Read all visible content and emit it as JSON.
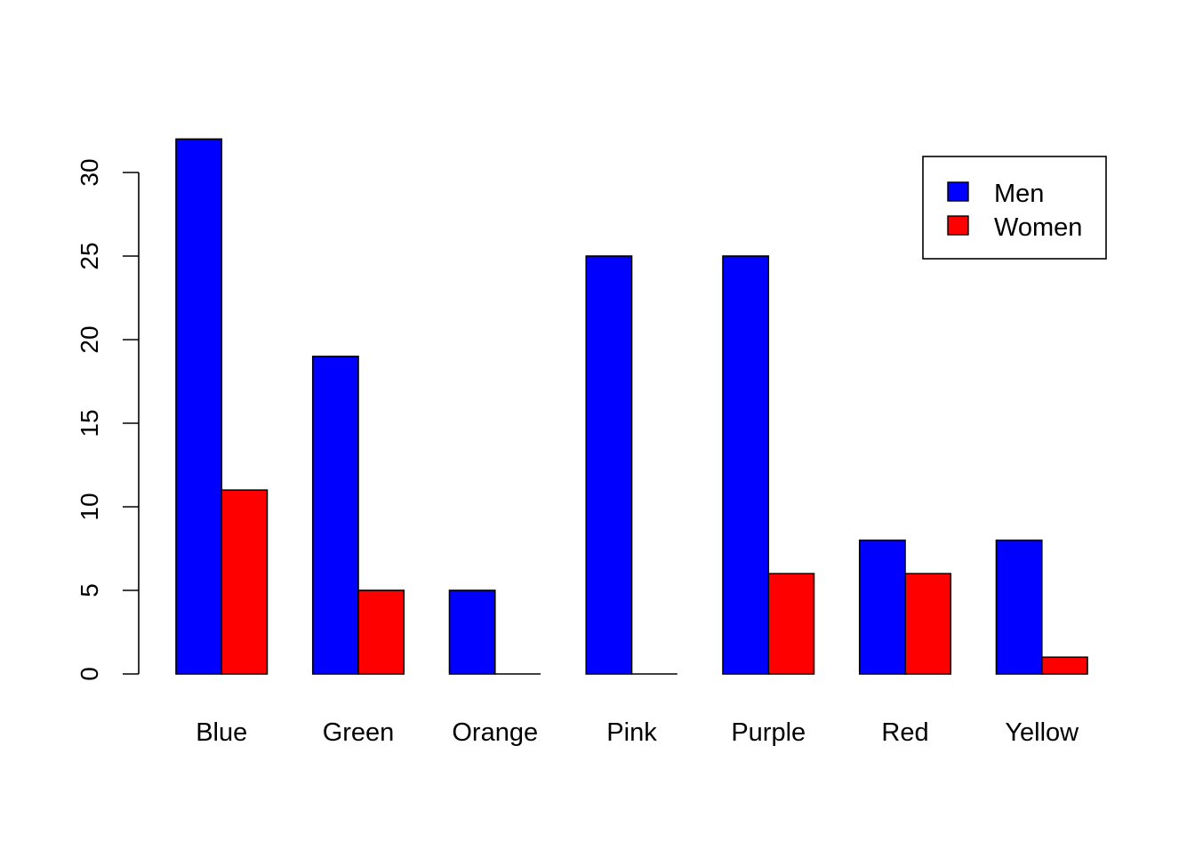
{
  "chart_data": {
    "type": "bar",
    "categories": [
      "Blue",
      "Green",
      "Orange",
      "Pink",
      "Purple",
      "Red",
      "Yellow"
    ],
    "series": [
      {
        "name": "Men",
        "values": [
          32,
          19,
          5,
          25,
          25,
          8,
          8
        ],
        "color": "#0000FF"
      },
      {
        "name": "Women",
        "values": [
          11,
          5,
          0,
          0,
          6,
          6,
          1
        ],
        "color": "#FF0000"
      }
    ],
    "title": "",
    "xlabel": "",
    "ylabel": "",
    "ylim": [
      0,
      32
    ],
    "yticks": [
      0,
      5,
      10,
      15,
      20,
      25,
      30
    ],
    "grid": false,
    "legend": {
      "position": "top-right",
      "entries": [
        "Men",
        "Women"
      ]
    }
  }
}
